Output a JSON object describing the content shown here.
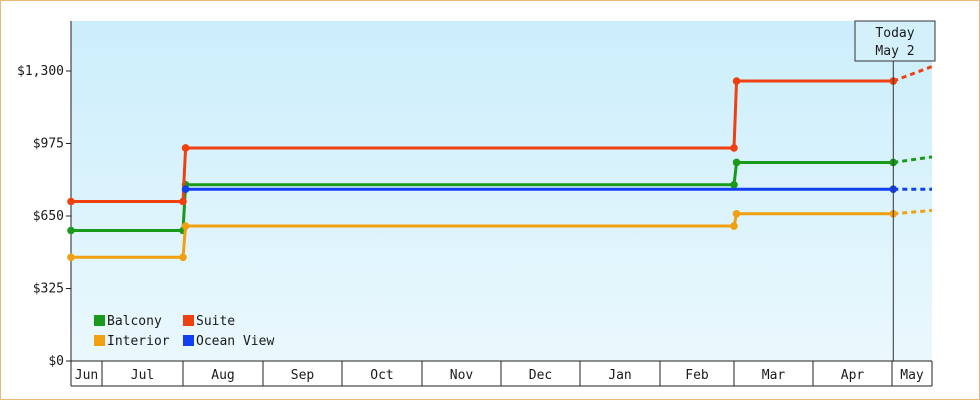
{
  "chart_data": {
    "type": "line",
    "step": true,
    "x_axis_labels": [
      "Jun",
      "Jul",
      "Aug",
      "Sep",
      "Oct",
      "Nov",
      "Dec",
      "Jan",
      "Feb",
      "Mar",
      "Apr",
      "May"
    ],
    "y_ticks": [
      "$0",
      "$325",
      "$650",
      "$975",
      "$1,300"
    ],
    "ylim": [
      0,
      1300
    ],
    "today_label_line1": "Today",
    "today_label_line2": "May 2",
    "legend_placement": "bottom-left",
    "series": [
      {
        "name": "Balcony",
        "color": "#1a9a1a",
        "points": [
          [
            "Jun 1",
            585
          ],
          [
            "Aug 1",
            585
          ],
          [
            "Aug 2",
            790
          ],
          [
            "Mar 1",
            790
          ],
          [
            "Mar 2",
            890
          ],
          [
            "May 2",
            890
          ]
        ],
        "projected_end": 915
      },
      {
        "name": "Suite",
        "color": "#f04010",
        "points": [
          [
            "Jun 1",
            715
          ],
          [
            "Aug 1",
            715
          ],
          [
            "Aug 2",
            955
          ],
          [
            "Mar 1",
            955
          ],
          [
            "Mar 2",
            1255
          ],
          [
            "May 2",
            1255
          ]
        ],
        "projected_end": 1320
      },
      {
        "name": "Interior",
        "color": "#f0a010",
        "points": [
          [
            "Jun 1",
            465
          ],
          [
            "Aug 1",
            465
          ],
          [
            "Aug 2",
            605
          ],
          [
            "Mar 1",
            605
          ],
          [
            "Mar 2",
            660
          ],
          [
            "May 2",
            660
          ]
        ],
        "projected_end": 675
      },
      {
        "name": "Ocean View",
        "color": "#1040f0",
        "points": [
          [
            "Aug 2",
            770
          ],
          [
            "May 2",
            770
          ]
        ],
        "projected_end": 770
      }
    ]
  }
}
